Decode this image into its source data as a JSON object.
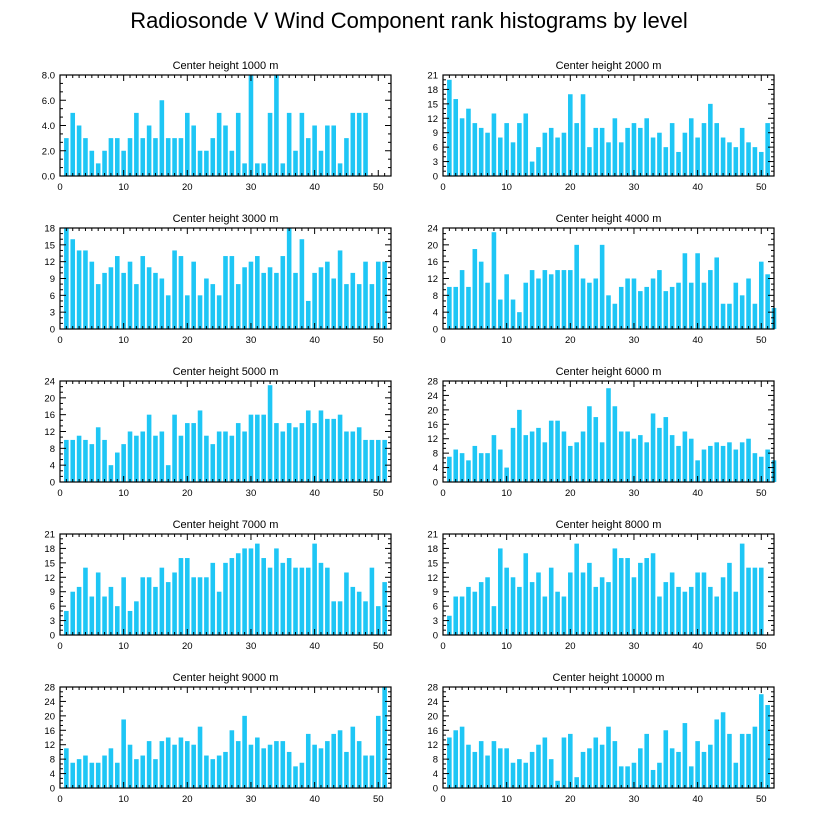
{
  "title": "Radiosonde V Wind Component rank histograms by level",
  "bar_color": "#1EC6F5",
  "chart_data": [
    {
      "type": "bar",
      "title": "Center height 1000 m",
      "xlim": [
        0,
        52
      ],
      "ylim": [
        0,
        8
      ],
      "yticks": [
        0,
        2,
        4,
        6,
        8
      ],
      "ytick_decimals": 1,
      "xticks": [
        0,
        10,
        20,
        30,
        40,
        50
      ],
      "values": [
        3,
        5,
        4,
        3,
        2,
        1,
        2,
        3,
        3,
        2,
        3,
        5,
        3,
        4,
        3,
        6,
        3,
        3,
        3,
        5,
        4,
        2,
        2,
        3,
        5,
        4,
        2,
        5,
        1,
        8,
        1,
        1,
        5,
        8,
        1,
        5,
        2,
        5,
        3,
        4,
        2,
        4,
        4,
        1,
        3,
        5,
        5,
        5
      ]
    },
    {
      "type": "bar",
      "title": "Center height 2000 m",
      "xlim": [
        0,
        52
      ],
      "ylim": [
        0,
        21
      ],
      "yticks": [
        0,
        3,
        6,
        9,
        12,
        15,
        18,
        21
      ],
      "ytick_decimals": 0,
      "xticks": [
        0,
        10,
        20,
        30,
        40,
        50
      ],
      "values": [
        20,
        16,
        12,
        14,
        11,
        10,
        9,
        13,
        8,
        11,
        7,
        11,
        13,
        3,
        6,
        9,
        10,
        8,
        9,
        17,
        11,
        17,
        6,
        10,
        10,
        7,
        12,
        7,
        10,
        11,
        10,
        12,
        8,
        9,
        6,
        11,
        5,
        9,
        12,
        8,
        11,
        15,
        11,
        8,
        7,
        6,
        10,
        7,
        6,
        5,
        11
      ]
    },
    {
      "type": "bar",
      "title": "Center height 3000 m",
      "xlim": [
        0,
        52
      ],
      "ylim": [
        0,
        18
      ],
      "yticks": [
        0,
        3,
        6,
        9,
        12,
        15,
        18
      ],
      "ytick_decimals": 0,
      "xticks": [
        0,
        10,
        20,
        30,
        40,
        50
      ],
      "values": [
        18,
        16,
        14,
        14,
        12,
        8,
        10,
        11,
        13,
        10,
        12,
        8,
        13,
        11,
        10,
        9,
        6,
        14,
        13,
        6,
        12,
        6,
        9,
        8,
        6,
        13,
        13,
        8,
        11,
        12,
        13,
        10,
        11,
        10,
        13,
        18,
        10,
        16,
        5,
        10,
        11,
        12,
        9,
        14,
        8,
        10,
        8,
        12,
        8,
        12,
        12
      ]
    },
    {
      "type": "bar",
      "title": "Center height 4000 m",
      "xlim": [
        0,
        52
      ],
      "ylim": [
        0,
        24
      ],
      "yticks": [
        0,
        4,
        8,
        12,
        16,
        20,
        24
      ],
      "ytick_decimals": 0,
      "xticks": [
        0,
        10,
        20,
        30,
        40,
        50
      ],
      "values": [
        10,
        10,
        14,
        10,
        19,
        16,
        11,
        23,
        7,
        13,
        7,
        4,
        11,
        14,
        12,
        14,
        13,
        14,
        14,
        14,
        20,
        12,
        11,
        12,
        20,
        8,
        6,
        10,
        12,
        12,
        9,
        10,
        12,
        14,
        9,
        10,
        11,
        18,
        11,
        18,
        11,
        14,
        17,
        6,
        6,
        11,
        8,
        12,
        6,
        16,
        13,
        5
      ]
    },
    {
      "type": "bar",
      "title": "Center height 5000 m",
      "xlim": [
        0,
        52
      ],
      "ylim": [
        0,
        24
      ],
      "yticks": [
        0,
        4,
        8,
        12,
        16,
        20,
        24
      ],
      "ytick_decimals": 0,
      "xticks": [
        0,
        10,
        20,
        30,
        40,
        50
      ],
      "values": [
        10,
        10,
        11,
        10,
        9,
        13,
        10,
        4,
        7,
        9,
        12,
        11,
        12,
        16,
        11,
        12,
        4,
        16,
        11,
        14,
        14,
        17,
        11,
        9,
        12,
        12,
        11,
        14,
        12,
        16,
        16,
        16,
        23,
        14,
        12,
        14,
        13,
        14,
        17,
        14,
        17,
        15,
        15,
        16,
        12,
        12,
        13,
        10,
        10,
        10,
        10
      ]
    },
    {
      "type": "bar",
      "title": "Center height 6000 m",
      "xlim": [
        0,
        52
      ],
      "ylim": [
        0,
        28
      ],
      "yticks": [
        0,
        4,
        8,
        12,
        16,
        20,
        24,
        28
      ],
      "ytick_decimals": 0,
      "xticks": [
        0,
        10,
        20,
        30,
        40,
        50
      ],
      "values": [
        7,
        9,
        8,
        6,
        10,
        8,
        8,
        13,
        9,
        4,
        15,
        20,
        13,
        14,
        15,
        11,
        17,
        17,
        14,
        10,
        11,
        14,
        21,
        18,
        11,
        26,
        21,
        14,
        14,
        12,
        13,
        11,
        19,
        15,
        18,
        13,
        10,
        14,
        12,
        6,
        9,
        10,
        11,
        10,
        11,
        9,
        11,
        12,
        8,
        7,
        9,
        6
      ]
    },
    {
      "type": "bar",
      "title": "Center height 7000 m",
      "xlim": [
        0,
        52
      ],
      "ylim": [
        0,
        21
      ],
      "yticks": [
        0,
        3,
        6,
        9,
        12,
        15,
        18,
        21
      ],
      "ytick_decimals": 0,
      "xticks": [
        0,
        10,
        20,
        30,
        40,
        50
      ],
      "values": [
        5,
        9,
        10,
        14,
        8,
        13,
        8,
        10,
        6,
        12,
        5,
        7,
        12,
        12,
        10,
        14,
        11,
        13,
        16,
        16,
        12,
        12,
        12,
        15,
        9,
        15,
        16,
        17,
        18,
        18,
        19,
        16,
        14,
        18,
        15,
        16,
        14,
        14,
        14,
        19,
        15,
        14,
        7,
        7,
        13,
        10,
        9,
        7,
        14,
        6,
        11
      ]
    },
    {
      "type": "bar",
      "title": "Center height 8000 m",
      "xlim": [
        0,
        52
      ],
      "ylim": [
        0,
        21
      ],
      "yticks": [
        0,
        3,
        6,
        9,
        12,
        15,
        18,
        21
      ],
      "ytick_decimals": 0,
      "xticks": [
        0,
        10,
        20,
        30,
        40,
        50
      ],
      "values": [
        4,
        8,
        8,
        10,
        9,
        11,
        12,
        6,
        18,
        14,
        12,
        10,
        17,
        11,
        13,
        8,
        14,
        9,
        8,
        13,
        19,
        13,
        15,
        10,
        12,
        11,
        18,
        16,
        16,
        12,
        15,
        16,
        17,
        8,
        11,
        13,
        10,
        9,
        10,
        13,
        13,
        10,
        8,
        12,
        15,
        9,
        19,
        14,
        14,
        14
      ]
    },
    {
      "type": "bar",
      "title": "Center height 9000 m",
      "xlim": [
        0,
        52
      ],
      "ylim": [
        0,
        28
      ],
      "yticks": [
        0,
        4,
        8,
        12,
        16,
        20,
        24,
        28
      ],
      "ytick_decimals": 0,
      "xticks": [
        0,
        10,
        20,
        30,
        40,
        50
      ],
      "values": [
        11,
        7,
        8,
        9,
        7,
        7,
        9,
        11,
        7,
        19,
        12,
        8,
        9,
        13,
        8,
        13,
        14,
        12,
        14,
        13,
        12,
        17,
        9,
        8,
        9,
        10,
        16,
        13,
        20,
        12,
        14,
        11,
        12,
        13,
        13,
        10,
        6,
        7,
        15,
        12,
        11,
        13,
        15,
        16,
        10,
        17,
        13,
        9,
        9,
        20,
        28
      ]
    },
    {
      "type": "bar",
      "title": "Center height 10000 m",
      "xlim": [
        0,
        52
      ],
      "ylim": [
        0,
        28
      ],
      "yticks": [
        0,
        4,
        8,
        12,
        16,
        20,
        24,
        28
      ],
      "ytick_decimals": 0,
      "xticks": [
        0,
        10,
        20,
        30,
        40,
        50
      ],
      "values": [
        14,
        16,
        17,
        12,
        10,
        13,
        9,
        13,
        11,
        11,
        7,
        8,
        7,
        10,
        12,
        14,
        8,
        2,
        14,
        15,
        3,
        10,
        11,
        14,
        12,
        17,
        13,
        6,
        6,
        7,
        11,
        15,
        5,
        7,
        16,
        11,
        10,
        18,
        6,
        13,
        10,
        12,
        19,
        21,
        15,
        7,
        15,
        15,
        17,
        26,
        23
      ]
    }
  ]
}
